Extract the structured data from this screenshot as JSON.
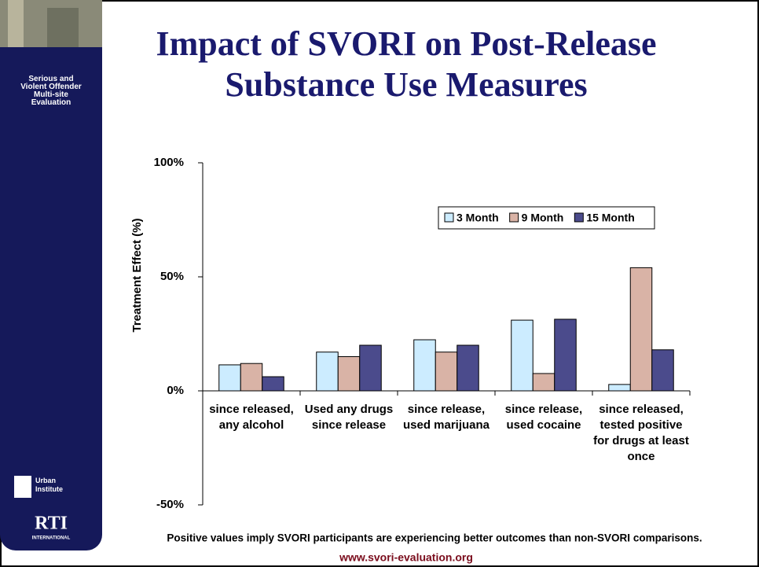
{
  "slide": {
    "program": "Serious and Violent Offender Multi-site Evaluation",
    "logo1": "Urban Institute",
    "logo2": "RTI",
    "logo2_sub": "INTERNATIONAL",
    "note": "Positive values imply SVORI participants are experiencing better outcomes than non-SVORI comparisons.",
    "url": "www.svori-evaluation.org"
  },
  "chart_data": {
    "type": "bar",
    "title": "Impact of SVORI on Post-Release Substance Use Measures",
    "y_label": "Treatment Effect (%)",
    "categories": [
      "since released, any alcohol",
      "Used any drugs since release",
      "since release, used marijuana",
      "since release, used cocaine",
      "since released, tested positive for drugs at least once"
    ],
    "series": [
      {
        "name": "3 Month",
        "color": "#ccecff",
        "values": [
          11.4,
          17,
          22.4,
          31,
          2.8
        ]
      },
      {
        "name": "9 Month",
        "color": "#d9b3a6",
        "values": [
          12,
          15,
          17,
          7.6,
          54
        ]
      },
      {
        "name": "15 Month",
        "color": "#4b4b8c",
        "values": [
          6.2,
          20,
          20,
          31.4,
          18
        ]
      }
    ],
    "ylim": [
      -50,
      100
    ],
    "yticks": [
      {
        "value": -50,
        "label": "-50%"
      },
      {
        "value": 0,
        "label": "0%"
      },
      {
        "value": 50,
        "label": "50%"
      },
      {
        "value": 100,
        "label": "100%"
      }
    ],
    "grid": false
  }
}
